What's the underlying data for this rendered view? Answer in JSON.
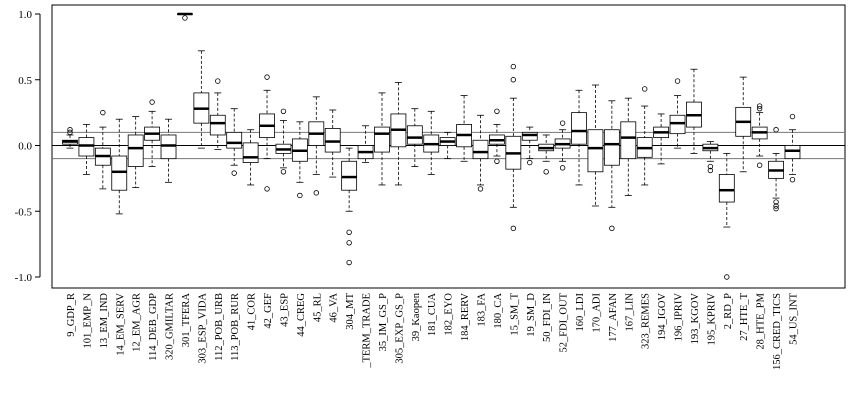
{
  "chart_data": {
    "type": "boxplot",
    "title": "",
    "xlabel": "",
    "ylabel": "",
    "ylim": [
      -1.1,
      1.05
    ],
    "yticks": [
      1.0,
      0.5,
      0.0,
      -0.5,
      -1.0
    ],
    "ytick_labels": [
      "1.0",
      "0.5",
      "0.0",
      "-0.5",
      "-1.0"
    ],
    "reference_lines": [
      0.1,
      0.0,
      -0.1
    ],
    "categories": [
      "9_GDP_R",
      "101_EMP_N",
      "13_EM_IND",
      "14_EM_SERV",
      "12_EM_AGR",
      "114_DEB_GDP",
      "320_GMILTAR",
      "301_TFERA",
      "303_ESP_VIDA",
      "112_POB_URB",
      "113_POB_RUR",
      "41_COR",
      "42_GEF",
      "43_ESP",
      "44_CREG",
      "45_RL",
      "46_VA",
      "304_MT",
      "_TERM_TRADE",
      "35_IM_GS_P",
      "305_EXP_GS_P",
      "39_Kaopen",
      "181_CUA",
      "182_EYO",
      "184_RERV",
      "183_FA",
      "180_CA",
      "15_SM_T",
      "19_SM_D",
      "50_FDI_IN",
      "52_FDI_OUT",
      "160_LDI",
      "170_ADI",
      "177_AFAN",
      "167_LIN",
      "323_REMES",
      "194_IGOV",
      "196_IPRIV",
      "193_KGOV",
      "195_KPRIV",
      "2_RD_P",
      "27_HTE_T",
      "28_HTE_PM",
      "156_CRED_TICS",
      "54_US_INT"
    ],
    "boxes": [
      {
        "whisker_low": -0.02,
        "q1": 0.01,
        "median": 0.03,
        "q3": 0.04,
        "whisker_high": 0.08,
        "outliers": [
          0.1,
          0.12
        ]
      },
      {
        "whisker_low": -0.22,
        "q1": -0.08,
        "median": 0.0,
        "q3": 0.06,
        "whisker_high": 0.16,
        "outliers": []
      },
      {
        "whisker_low": -0.33,
        "q1": -0.15,
        "median": -0.08,
        "q3": -0.02,
        "whisker_high": 0.14,
        "outliers": [
          0.25
        ]
      },
      {
        "whisker_low": -0.52,
        "q1": -0.34,
        "median": -0.2,
        "q3": -0.08,
        "whisker_high": 0.2,
        "outliers": []
      },
      {
        "whisker_low": -0.32,
        "q1": -0.16,
        "median": -0.02,
        "q3": 0.08,
        "whisker_high": 0.22,
        "outliers": []
      },
      {
        "whisker_low": -0.16,
        "q1": 0.04,
        "median": 0.09,
        "q3": 0.14,
        "whisker_high": 0.26,
        "outliers": [
          0.33
        ]
      },
      {
        "whisker_low": -0.28,
        "q1": -0.1,
        "median": 0.0,
        "q3": 0.08,
        "whisker_high": 0.2,
        "outliers": []
      },
      {
        "whisker_low": 1.0,
        "q1": 1.0,
        "median": 1.0,
        "q3": 1.0,
        "whisker_high": 1.0,
        "outliers": [
          0.97
        ]
      },
      {
        "whisker_low": -0.02,
        "q1": 0.17,
        "median": 0.28,
        "q3": 0.4,
        "whisker_high": 0.72,
        "outliers": []
      },
      {
        "whisker_low": -0.03,
        "q1": 0.08,
        "median": 0.17,
        "q3": 0.23,
        "whisker_high": 0.4,
        "outliers": [
          0.49
        ]
      },
      {
        "whisker_low": -0.15,
        "q1": -0.02,
        "median": 0.02,
        "q3": 0.1,
        "whisker_high": 0.28,
        "outliers": [
          -0.21
        ]
      },
      {
        "whisker_low": -0.3,
        "q1": -0.13,
        "median": -0.09,
        "q3": 0.02,
        "whisker_high": 0.12,
        "outliers": []
      },
      {
        "whisker_low": -0.1,
        "q1": 0.06,
        "median": 0.15,
        "q3": 0.24,
        "whisker_high": 0.42,
        "outliers": [
          0.52,
          -0.33
        ]
      },
      {
        "whisker_low": -0.17,
        "q1": -0.06,
        "median": -0.03,
        "q3": 0.01,
        "whisker_high": 0.19,
        "outliers": [
          0.26,
          -0.2
        ]
      },
      {
        "whisker_low": -0.28,
        "q1": -0.12,
        "median": -0.04,
        "q3": 0.05,
        "whisker_high": 0.18,
        "outliers": [
          -0.38
        ]
      },
      {
        "whisker_low": -0.22,
        "q1": 0.0,
        "median": 0.09,
        "q3": 0.18,
        "whisker_high": 0.37,
        "outliers": [
          -0.36
        ]
      },
      {
        "whisker_low": -0.24,
        "q1": -0.05,
        "median": 0.03,
        "q3": 0.13,
        "whisker_high": 0.27,
        "outliers": []
      },
      {
        "whisker_low": -0.5,
        "q1": -0.34,
        "median": -0.24,
        "q3": -0.12,
        "whisker_high": -0.02,
        "outliers": [
          -0.66,
          -0.74,
          -0.89
        ]
      },
      {
        "whisker_low": -0.13,
        "q1": -0.1,
        "median": -0.05,
        "q3": 0.0,
        "whisker_high": 0.15,
        "outliers": []
      },
      {
        "whisker_low": -0.3,
        "q1": -0.05,
        "median": 0.09,
        "q3": 0.14,
        "whisker_high": 0.4,
        "outliers": []
      },
      {
        "whisker_low": -0.3,
        "q1": -0.01,
        "median": 0.12,
        "q3": 0.24,
        "whisker_high": 0.48,
        "outliers": []
      },
      {
        "whisker_low": -0.16,
        "q1": 0.01,
        "median": 0.06,
        "q3": 0.15,
        "whisker_high": 0.28,
        "outliers": []
      },
      {
        "whisker_low": -0.22,
        "q1": -0.05,
        "median": 0.01,
        "q3": 0.08,
        "whisker_high": 0.26,
        "outliers": []
      },
      {
        "whisker_low": -0.1,
        "q1": 0.0,
        "median": 0.03,
        "q3": 0.06,
        "whisker_high": 0.1,
        "outliers": []
      },
      {
        "whisker_low": -0.12,
        "q1": -0.01,
        "median": 0.08,
        "q3": 0.16,
        "whisker_high": 0.38,
        "outliers": []
      },
      {
        "whisker_low": -0.3,
        "q1": -0.1,
        "median": -0.05,
        "q3": 0.04,
        "whisker_high": 0.23,
        "outliers": [
          -0.33
        ]
      },
      {
        "whisker_low": -0.08,
        "q1": 0.01,
        "median": 0.04,
        "q3": 0.08,
        "whisker_high": 0.16,
        "outliers": [
          0.26,
          -0.12
        ]
      },
      {
        "whisker_low": -0.47,
        "q1": -0.18,
        "median": -0.06,
        "q3": 0.07,
        "whisker_high": 0.36,
        "outliers": [
          0.5,
          0.6,
          -0.63
        ]
      },
      {
        "whisker_low": -0.1,
        "q1": 0.04,
        "median": 0.08,
        "q3": 0.1,
        "whisker_high": 0.14,
        "outliers": [
          -0.13
        ]
      },
      {
        "whisker_low": -0.12,
        "q1": -0.04,
        "median": -0.02,
        "q3": 0.01,
        "whisker_high": 0.08,
        "outliers": [
          -0.2
        ]
      },
      {
        "whisker_low": -0.12,
        "q1": -0.02,
        "median": 0.01,
        "q3": 0.05,
        "whisker_high": 0.12,
        "outliers": [
          0.17,
          -0.17
        ]
      },
      {
        "whisker_low": -0.3,
        "q1": 0.01,
        "median": 0.11,
        "q3": 0.25,
        "whisker_high": 0.42,
        "outliers": []
      },
      {
        "whisker_low": -0.46,
        "q1": -0.2,
        "median": -0.02,
        "q3": 0.12,
        "whisker_high": 0.46,
        "outliers": []
      },
      {
        "whisker_low": -0.47,
        "q1": -0.15,
        "median": 0.01,
        "q3": 0.12,
        "whisker_high": 0.34,
        "outliers": [
          -0.63
        ]
      },
      {
        "whisker_low": -0.38,
        "q1": -0.1,
        "median": 0.06,
        "q3": 0.18,
        "whisker_high": 0.36,
        "outliers": []
      },
      {
        "whisker_low": -0.3,
        "q1": -0.09,
        "median": -0.02,
        "q3": 0.06,
        "whisker_high": 0.3,
        "outliers": [
          0.43
        ]
      },
      {
        "whisker_low": -0.14,
        "q1": 0.06,
        "median": 0.1,
        "q3": 0.14,
        "whisker_high": 0.24,
        "outliers": []
      },
      {
        "whisker_low": -0.02,
        "q1": 0.09,
        "median": 0.17,
        "q3": 0.23,
        "whisker_high": 0.38,
        "outliers": [
          0.49
        ]
      },
      {
        "whisker_low": -0.06,
        "q1": 0.14,
        "median": 0.23,
        "q3": 0.33,
        "whisker_high": 0.58,
        "outliers": []
      },
      {
        "whisker_low": -0.12,
        "q1": -0.04,
        "median": -0.02,
        "q3": 0.01,
        "whisker_high": 0.03,
        "outliers": [
          -0.16,
          -0.19
        ]
      },
      {
        "whisker_low": -0.62,
        "q1": -0.43,
        "median": -0.34,
        "q3": -0.22,
        "whisker_high": -0.06,
        "outliers": [
          -1.0
        ]
      },
      {
        "whisker_low": -0.2,
        "q1": 0.07,
        "median": 0.18,
        "q3": 0.29,
        "whisker_high": 0.52,
        "outliers": []
      },
      {
        "whisker_low": -0.08,
        "q1": 0.05,
        "median": 0.1,
        "q3": 0.14,
        "whisker_high": 0.25,
        "outliers": [
          0.3,
          0.28,
          -0.15
        ]
      },
      {
        "whisker_low": -0.4,
        "q1": -0.25,
        "median": -0.19,
        "q3": -0.12,
        "whisker_high": -0.06,
        "outliers": [
          0.12,
          -0.43,
          -0.46,
          -0.48
        ]
      },
      {
        "whisker_low": -0.22,
        "q1": -0.1,
        "median": -0.04,
        "q3": 0.0,
        "whisker_high": 0.12,
        "outliers": [
          0.22,
          -0.26
        ]
      }
    ]
  }
}
